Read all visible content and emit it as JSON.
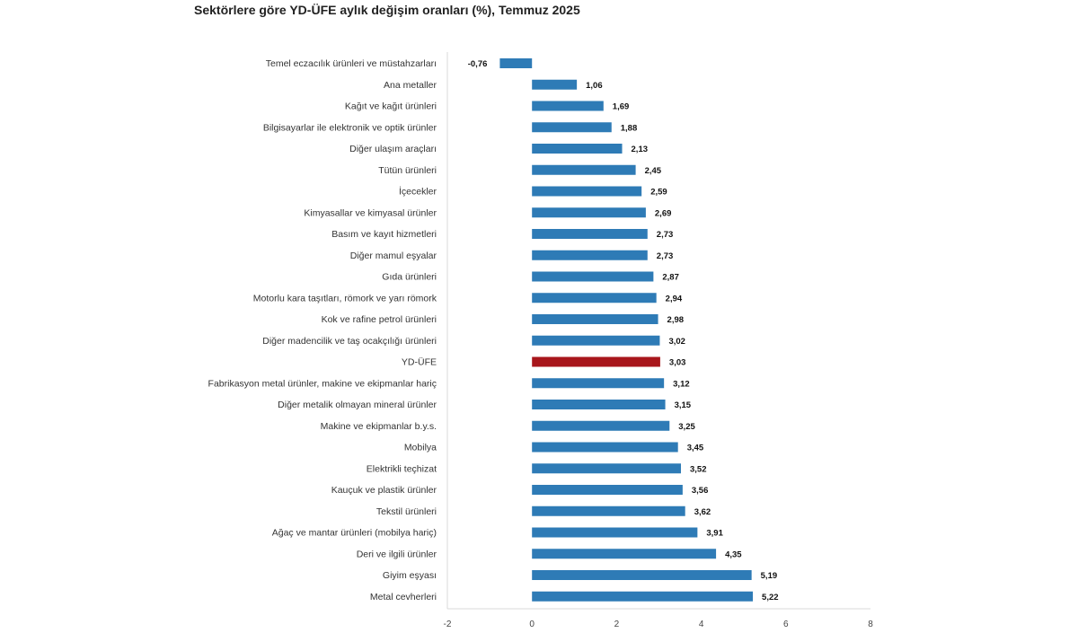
{
  "chart_data": {
    "type": "bar",
    "orientation": "horizontal",
    "title": "Sektörlere göre YD-ÜFE aylık değişim oranları (%), Temmuz 2025",
    "xlabel": "",
    "ylabel": "",
    "xlim": [
      -2,
      8
    ],
    "xticks": [
      "-2",
      "0",
      "2",
      "4",
      "6",
      "8"
    ],
    "grid": false,
    "legend": "none",
    "colors": {
      "default": "#2e7bb6",
      "highlight": "#a8161b"
    },
    "highlight_category": "YD-ÜFE",
    "categories": [
      "Temel eczacılık ürünleri ve müstahzarları",
      "Ana metaller",
      "Kağıt ve kağıt ürünleri",
      "Bilgisayarlar ile elektronik ve optik ürünler",
      "Diğer ulaşım araçları",
      "Tütün ürünleri",
      "İçecekler",
      "Kimyasallar ve kimyasal ürünler",
      "Basım ve kayıt hizmetleri",
      "Diğer mamul eşyalar",
      "Gıda ürünleri",
      "Motorlu kara taşıtları, römork ve yarı römork",
      "Kok ve rafine petrol ürünleri",
      "Diğer madencilik ve taş ocakçılığı ürünleri",
      "YD-ÜFE",
      "Fabrikasyon metal ürünler, makine ve ekipmanlar hariç",
      "Diğer metalik olmayan mineral ürünler",
      "Makine ve ekipmanlar b.y.s.",
      "Mobilya",
      "Elektrikli teçhizat",
      "Kauçuk ve plastik ürünler",
      "Tekstil ürünleri",
      "Ağaç ve mantar ürünleri (mobilya hariç)",
      "Deri ve ilgili ürünler",
      "Giyim eşyası",
      "Metal cevherleri"
    ],
    "values": [
      -0.76,
      1.06,
      1.69,
      1.88,
      2.13,
      2.45,
      2.59,
      2.69,
      2.73,
      2.73,
      2.87,
      2.94,
      2.98,
      3.02,
      3.03,
      3.12,
      3.15,
      3.25,
      3.45,
      3.52,
      3.56,
      3.62,
      3.91,
      4.35,
      5.19,
      5.22
    ],
    "value_labels": [
      "-0,76",
      "1,06",
      "1,69",
      "1,88",
      "2,13",
      "2,45",
      "2,59",
      "2,69",
      "2,73",
      "2,73",
      "2,87",
      "2,94",
      "2,98",
      "3,02",
      "3,03",
      "3,12",
      "3,15",
      "3,25",
      "3,45",
      "3,52",
      "3,56",
      "3,62",
      "3,91",
      "4,35",
      "5,19",
      "5,22"
    ]
  }
}
